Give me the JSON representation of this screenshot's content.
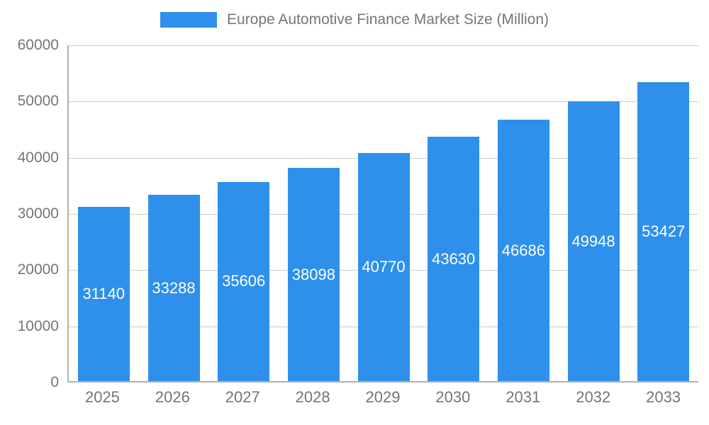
{
  "chart_data": {
    "type": "bar",
    "title": "Europe Automotive Finance Market Size (Million)",
    "categories": [
      "2025",
      "2026",
      "2027",
      "2028",
      "2029",
      "2030",
      "2031",
      "2032",
      "2033"
    ],
    "values": [
      31140,
      33288,
      35606,
      38098,
      40770,
      43630,
      46686,
      49948,
      53427
    ],
    "xlabel": "",
    "ylabel": "",
    "ylim": [
      0,
      60000
    ],
    "y_ticks": [
      0,
      10000,
      20000,
      30000,
      40000,
      50000,
      60000
    ],
    "grid": true,
    "legend_position": "top",
    "bar_color": "#2E90EA",
    "label_color": "#ffffff",
    "axis_text_color": "#757575",
    "gridline_color": "#cccccc"
  },
  "legend": {
    "label": "Europe Automotive Finance Market Size (Million)"
  }
}
